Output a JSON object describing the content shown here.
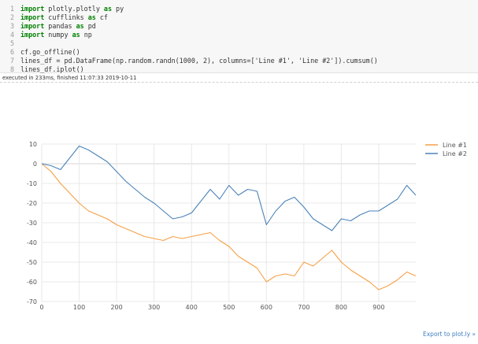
{
  "code_cell": {
    "line_numbers": [
      "1",
      "2",
      "3",
      "4",
      "5",
      "6",
      "7",
      "8"
    ],
    "lines": [
      {
        "kw": "import",
        "rest": " plotly.plotly ",
        "kw2": "as",
        "rest2": " py"
      },
      {
        "kw": "import",
        "rest": " cufflinks ",
        "kw2": "as",
        "rest2": " cf"
      },
      {
        "kw": "import",
        "rest": " pandas ",
        "kw2": "as",
        "rest2": " pd"
      },
      {
        "kw": "import",
        "rest": " numpy ",
        "kw2": "as",
        "rest2": " np"
      },
      {
        "kw": "",
        "rest": "",
        "kw2": "",
        "rest2": ""
      },
      {
        "kw": "",
        "rest": "cf.go_offline()",
        "kw2": "",
        "rest2": ""
      },
      {
        "kw": "",
        "rest": "lines_df = pd.DataFrame(np.random.randn(1000, 2), columns=['Line #1', 'Line #2']).cumsum()",
        "kw2": "",
        "rest2": ""
      },
      {
        "kw": "",
        "rest": "lines_df.iplot()",
        "kw2": "",
        "rest2": ""
      }
    ]
  },
  "execution_note": "executed in 233ms, finished 11:07:33 2019-10-11",
  "export_link": "Export to plot.ly »",
  "colors": {
    "line1": "#f5a045",
    "line2": "#4a82b8",
    "grid": "#e8e8e8",
    "tick": "#555555"
  },
  "chart_data": {
    "type": "line",
    "x_ticks": [
      0,
      100,
      200,
      300,
      400,
      500,
      600,
      700,
      800,
      900
    ],
    "y_ticks": [
      10,
      0,
      -10,
      -20,
      -30,
      -40,
      -50,
      -60,
      -70
    ],
    "xlim": [
      0,
      999
    ],
    "ylim": [
      -70,
      10
    ],
    "legend_position": "top-right",
    "grid": true,
    "series": [
      {
        "name": "Line #1",
        "x": [
          0,
          25,
          50,
          75,
          100,
          125,
          150,
          175,
          200,
          225,
          250,
          275,
          300,
          325,
          350,
          375,
          400,
          425,
          450,
          475,
          500,
          525,
          550,
          575,
          600,
          625,
          650,
          675,
          700,
          725,
          750,
          775,
          800,
          825,
          850,
          875,
          900,
          925,
          950,
          975,
          999
        ],
        "y": [
          0,
          -4,
          -10,
          -15,
          -20,
          -24,
          -26,
          -28,
          -31,
          -33,
          -35,
          -37,
          -38,
          -39,
          -37,
          -38,
          -37,
          -36,
          -35,
          -39,
          -42,
          -47,
          -50,
          -53,
          -60,
          -57,
          -56,
          -57,
          -50,
          -52,
          -48,
          -44,
          -50,
          -54,
          -57,
          -60,
          -64,
          -62,
          -59,
          -55,
          -57
        ]
      },
      {
        "name": "Line #2",
        "x": [
          0,
          25,
          50,
          75,
          100,
          125,
          150,
          175,
          200,
          225,
          250,
          275,
          300,
          325,
          350,
          375,
          400,
          425,
          450,
          475,
          500,
          525,
          550,
          575,
          600,
          625,
          650,
          675,
          700,
          725,
          750,
          775,
          800,
          825,
          850,
          875,
          900,
          925,
          950,
          975,
          999
        ],
        "y": [
          0,
          -1,
          -3,
          3,
          9,
          7,
          4,
          1,
          -4,
          -9,
          -13,
          -17,
          -20,
          -24,
          -28,
          -27,
          -25,
          -19,
          -13,
          -18,
          -11,
          -16,
          -13,
          -14,
          -31,
          -24,
          -19,
          -17,
          -22,
          -28,
          -31,
          -34,
          -28,
          -29,
          -26,
          -24,
          -24,
          -21,
          -18,
          -11,
          -16
        ]
      }
    ]
  }
}
